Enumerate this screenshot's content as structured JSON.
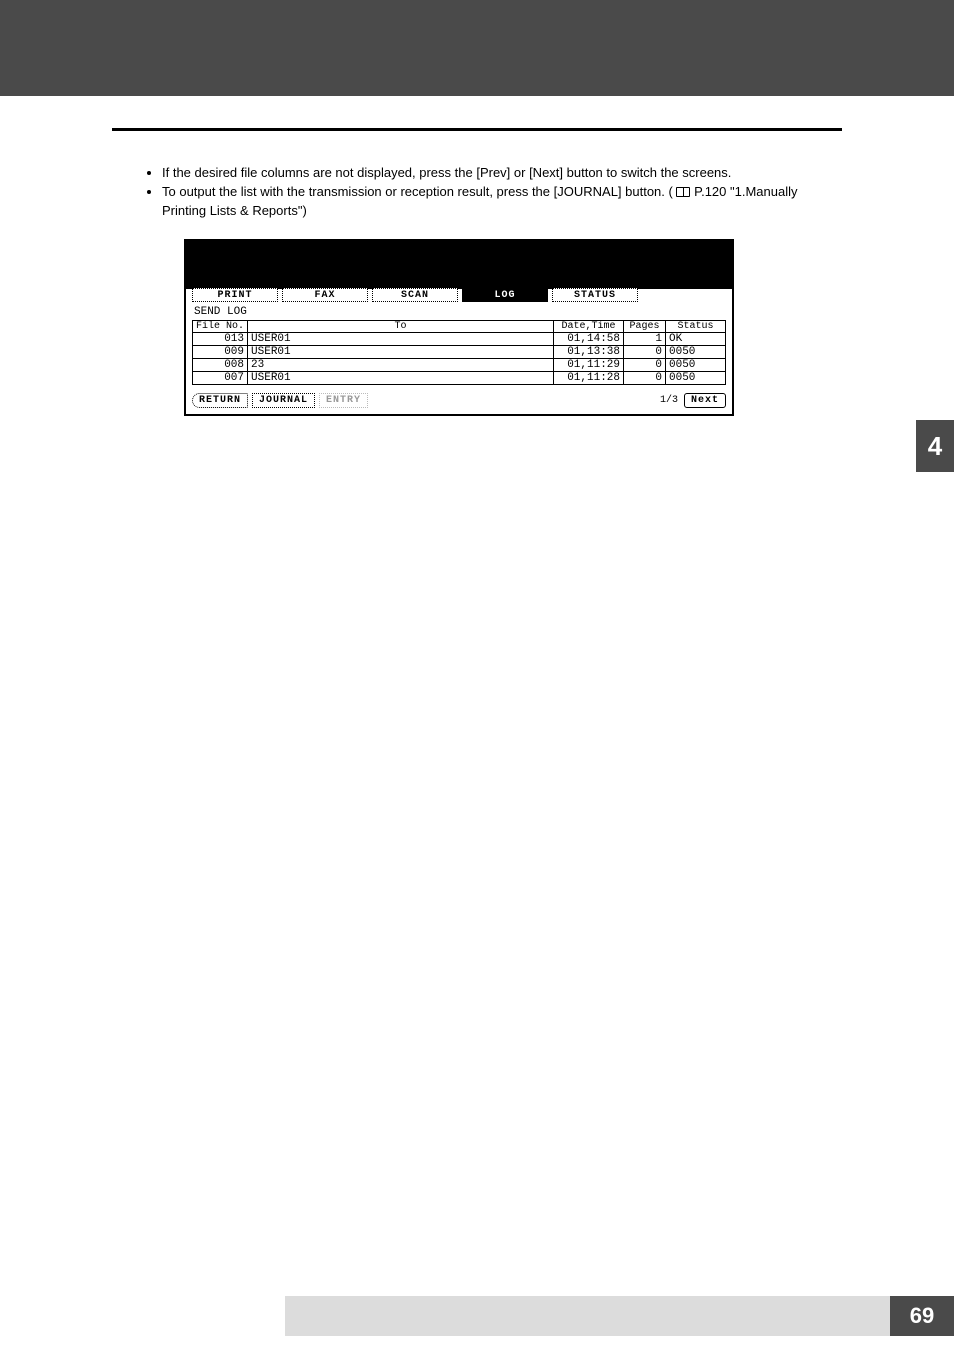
{
  "side_tab": "4",
  "page_number": "69",
  "bullets": {
    "b1": "If the desired file columns are not displayed, press the [Prev] or [Next] button to switch the screens.",
    "b2a": "To output the list with the transmission or reception result, press the [JOURNAL] button. (",
    "b2b": " P.120 \"1.Manually Printing Lists & Reports\")"
  },
  "screen": {
    "tabs": {
      "print": "PRINT",
      "fax": "FAX",
      "scan": "SCAN",
      "log": "LOG",
      "status": "STATUS"
    },
    "active_tab": "LOG",
    "subtitle": "SEND LOG",
    "columns": {
      "file": "File No.",
      "to": "To",
      "dt": "Date,Time",
      "pages": "Pages",
      "status": "Status"
    },
    "rows": [
      {
        "file": "013",
        "to": "USER01",
        "dt": "01,14:58",
        "pages": "1",
        "status": "OK"
      },
      {
        "file": "009",
        "to": "USER01",
        "dt": "01,13:38",
        "pages": "0",
        "status": "0050"
      },
      {
        "file": "008",
        "to": "23",
        "dt": "01,11:29",
        "pages": "0",
        "status": "0050"
      },
      {
        "file": "007",
        "to": "USER01",
        "dt": "01,11:28",
        "pages": "0",
        "status": "0050"
      }
    ],
    "buttons": {
      "return": "RETURN",
      "journal": "JOURNAL",
      "entry": "ENTRY",
      "next": "Next"
    },
    "page_indicator": "1/3"
  },
  "colors": {
    "band": "#4a4a4a",
    "text": "#000000",
    "page_bg": "#ffffff",
    "footer_grey": "#dcdcdc"
  }
}
